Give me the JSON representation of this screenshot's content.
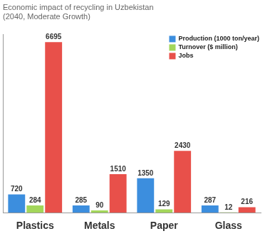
{
  "chart_data": {
    "type": "bar",
    "title": "Economic impact of recycling in Uzbekistan",
    "subtitle": "(2040, Moderate Growth)",
    "categories": [
      "Plastics",
      "Metals",
      "Paper",
      "Glass"
    ],
    "series": [
      {
        "name": "Production (1000 ton/year)",
        "color": "#3c8ede",
        "values": [
          720,
          285,
          1350,
          287
        ]
      },
      {
        "name": "Turnover ($ million)",
        "color": "#a3d65a",
        "values": [
          284,
          90,
          129,
          12
        ]
      },
      {
        "name": "Jobs",
        "color": "#e8504a",
        "values": [
          6695,
          1510,
          2430,
          216
        ]
      }
    ],
    "ylim": [
      0,
      7000
    ],
    "grid": false,
    "legend": "upper right",
    "data_labels": true,
    "tick_labels": "x"
  }
}
